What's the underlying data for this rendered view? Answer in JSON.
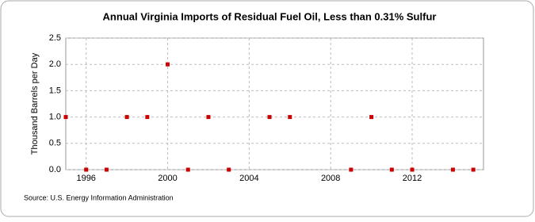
{
  "chart_data": {
    "type": "scatter",
    "title": "Annual Virginia Imports of Residual Fuel Oil, Less than 0.31% Sulfur",
    "y_label": "Thousand Barrels per Day",
    "source": "Source: U.S. Energy Information Administration",
    "series": [
      {
        "name": "Virginia",
        "color": "#cc0000",
        "x": [
          1995,
          1996,
          1997,
          1998,
          1999,
          2000,
          2001,
          2002,
          2003,
          2005,
          2006,
          2009,
          2010,
          2011,
          2012,
          2014,
          2015
        ],
        "values": [
          1,
          0,
          0,
          1,
          1,
          2,
          0,
          1,
          0,
          1,
          1,
          0,
          1,
          0,
          0,
          0,
          0
        ]
      }
    ],
    "xlim": [
      1995,
      2015.5
    ],
    "xticks": [
      1996,
      2000,
      2004,
      2008,
      2012
    ],
    "ylim": [
      0,
      2.5
    ],
    "yticks": [
      {
        "value": 0,
        "label": "0.0"
      },
      {
        "value": 0.5,
        "label": "0.5"
      },
      {
        "value": 1,
        "label": "1.0"
      },
      {
        "value": 1.5,
        "label": "1.5"
      },
      {
        "value": 2,
        "label": "2.0"
      },
      {
        "value": 2.5,
        "label": "2.5"
      }
    ],
    "grid": true
  }
}
